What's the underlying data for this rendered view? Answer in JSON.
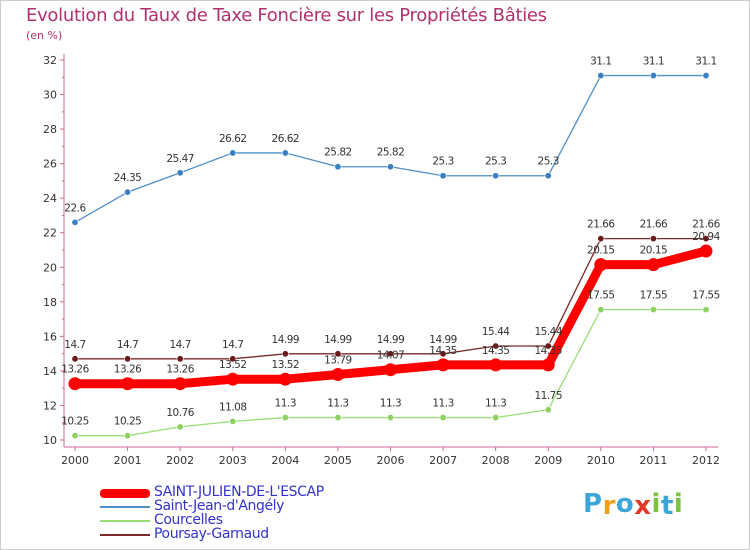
{
  "chart_data": {
    "type": "line",
    "title": "Evolution du Taux de Taxe Foncière sur les Propriétés Bâties",
    "ylabel": "(en %)",
    "xlabel": "",
    "x": [
      "2000",
      "2001",
      "2002",
      "2003",
      "2004",
      "2005",
      "2006",
      "2007",
      "2008",
      "2009",
      "2010",
      "2011",
      "2012"
    ],
    "ylim": [
      10,
      32
    ],
    "yticks": [
      10,
      12,
      14,
      16,
      18,
      20,
      22,
      24,
      26,
      28,
      30,
      32
    ],
    "grid": false,
    "legend_position": "bottom-left",
    "series": [
      {
        "name": "SAINT-JULIEN-DE-L'ESCAP",
        "color": "#ff0000",
        "values": [
          13.26,
          13.26,
          13.26,
          13.52,
          13.52,
          13.79,
          14.07,
          14.35,
          14.35,
          14.35,
          20.15,
          20.15,
          20.94
        ],
        "labels": [
          "13.26",
          "13.26",
          "13.26",
          "13.52",
          "13.52",
          "13.79",
          "14.07",
          "14.35",
          "14.35",
          "14.35",
          "20.15",
          "20.15",
          "20.94"
        ]
      },
      {
        "name": "Saint-Jean-d'Angély",
        "color": "#4f8fc8",
        "values": [
          22.6,
          24.35,
          25.47,
          26.62,
          26.62,
          25.82,
          25.82,
          25.3,
          25.3,
          25.3,
          31.1,
          31.1,
          31.1
        ],
        "labels": [
          "22.6",
          "24.35",
          "25.47",
          "26.62",
          "26.62",
          "25.82",
          "25.82",
          "25.3",
          "25.3",
          "25.3",
          "31.1",
          "31.1",
          "31.1"
        ]
      },
      {
        "name": "Courcelles",
        "color": "#99dd77",
        "values": [
          10.25,
          10.25,
          10.76,
          11.08,
          11.3,
          11.3,
          11.3,
          11.3,
          11.3,
          11.75,
          17.55,
          17.55,
          17.55
        ],
        "labels": [
          "10.25",
          "10.25",
          "10.76",
          "11.08",
          "11.3",
          "11.3",
          "11.3",
          "11.3",
          "11.3",
          "11.75",
          "17.55",
          "17.55",
          "17.55"
        ]
      },
      {
        "name": "Poursay-Garnaud",
        "color": "#7a2a2a",
        "values": [
          14.7,
          14.7,
          14.7,
          14.7,
          14.99,
          14.99,
          14.99,
          14.99,
          15.44,
          15.44,
          21.66,
          21.66,
          21.66
        ],
        "labels": [
          "14.7",
          "14.7",
          "14.7",
          "14.7",
          "14.99",
          "14.99",
          "14.99",
          "14.99",
          "15.44",
          "15.44",
          "21.66",
          "21.66",
          "21.66"
        ]
      }
    ]
  },
  "logo": {
    "letters": [
      "P",
      "r",
      "o",
      "x",
      "i",
      "t",
      "i"
    ],
    "colors": [
      "#3ea5d8",
      "#f0a020",
      "#3ea5d8",
      "#e23a2a",
      "#7cc243",
      "#3ea5d8",
      "#7cc243"
    ]
  }
}
